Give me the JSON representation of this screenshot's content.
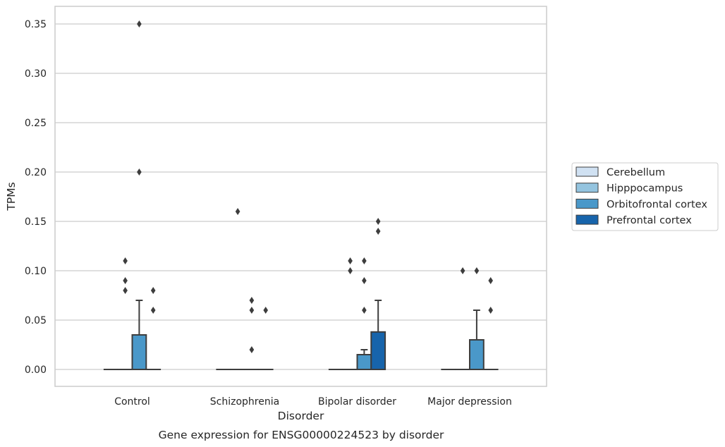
{
  "chart_data": {
    "type": "box",
    "title": "",
    "caption": "Gene expression for ENSG00000224523 by disorder",
    "xlabel": "Disorder",
    "ylabel": "TPMs",
    "ylim": [
      -0.017,
      0.367
    ],
    "yticks": [
      0.0,
      0.05,
      0.1,
      0.15,
      0.2,
      0.25,
      0.3,
      0.35
    ],
    "ytick_labels": [
      "0.00",
      "0.05",
      "0.10",
      "0.15",
      "0.20",
      "0.25",
      "0.30",
      "0.35"
    ],
    "grid": "horizontal",
    "categories": [
      "Control",
      "Schizophrenia",
      "Bipolar disorder",
      "Major depression"
    ],
    "legend": {
      "placement": "right",
      "entries": [
        "Cerebellum",
        "Hipppocampus",
        "Orbitofrontal cortex",
        "Prefrontal cortex"
      ]
    },
    "colors": {
      "Cerebellum": "#d0e1f2",
      "Hipppocampus": "#94c4df",
      "Orbitofrontal cortex": "#4a98c9",
      "Prefrontal cortex": "#1764ab",
      "outline": "#3d3d3d",
      "grid": "#cccccc"
    },
    "series": [
      {
        "name": "Cerebellum",
        "boxes": [
          {
            "q1": 0,
            "median": 0,
            "q3": 0,
            "whislo": 0,
            "whishi": 0,
            "fliers": []
          },
          {
            "q1": 0,
            "median": 0,
            "q3": 0,
            "whislo": 0,
            "whishi": 0,
            "fliers": []
          },
          {
            "q1": 0,
            "median": 0,
            "q3": 0,
            "whislo": 0,
            "whishi": 0,
            "fliers": []
          },
          {
            "q1": 0,
            "median": 0,
            "q3": 0,
            "whislo": 0,
            "whishi": 0,
            "fliers": []
          }
        ]
      },
      {
        "name": "Hipppocampus",
        "boxes": [
          {
            "q1": 0,
            "median": 0,
            "q3": 0,
            "whislo": 0,
            "whishi": 0,
            "fliers": [
              0.08,
              0.09,
              0.11
            ]
          },
          {
            "q1": 0,
            "median": 0,
            "q3": 0,
            "whislo": 0,
            "whishi": 0,
            "fliers": [
              0.16
            ]
          },
          {
            "q1": 0,
            "median": 0,
            "q3": 0,
            "whislo": 0,
            "whishi": 0,
            "fliers": [
              0.1,
              0.11
            ]
          },
          {
            "q1": 0,
            "median": 0,
            "q3": 0,
            "whislo": 0,
            "whishi": 0,
            "fliers": [
              0.1
            ]
          }
        ]
      },
      {
        "name": "Orbitofrontal cortex",
        "boxes": [
          {
            "q1": 0,
            "median": 0,
            "q3": 0.035,
            "whislo": 0,
            "whishi": 0.07,
            "fliers": [
              0.2,
              0.35
            ]
          },
          {
            "q1": 0,
            "median": 0,
            "q3": 0,
            "whislo": 0,
            "whishi": 0,
            "fliers": [
              0.02,
              0.06,
              0.07
            ]
          },
          {
            "q1": 0,
            "median": 0,
            "q3": 0.015,
            "whislo": 0,
            "whishi": 0.02,
            "fliers": [
              0.06,
              0.09,
              0.11
            ]
          },
          {
            "q1": 0,
            "median": 0,
            "q3": 0.03,
            "whislo": 0,
            "whishi": 0.06,
            "fliers": [
              0.1
            ]
          }
        ]
      },
      {
        "name": "Prefrontal cortex",
        "boxes": [
          {
            "q1": 0,
            "median": 0,
            "q3": 0,
            "whislo": 0,
            "whishi": 0,
            "fliers": [
              0.06,
              0.08
            ]
          },
          {
            "q1": 0,
            "median": 0,
            "q3": 0,
            "whislo": 0,
            "whishi": 0,
            "fliers": [
              0.06
            ]
          },
          {
            "q1": 0,
            "median": 0,
            "q3": 0.038,
            "whislo": 0,
            "whishi": 0.07,
            "fliers": [
              0.14,
              0.15
            ]
          },
          {
            "q1": 0,
            "median": 0,
            "q3": 0,
            "whislo": 0,
            "whishi": 0,
            "fliers": [
              0.06,
              0.09
            ]
          }
        ]
      }
    ]
  }
}
